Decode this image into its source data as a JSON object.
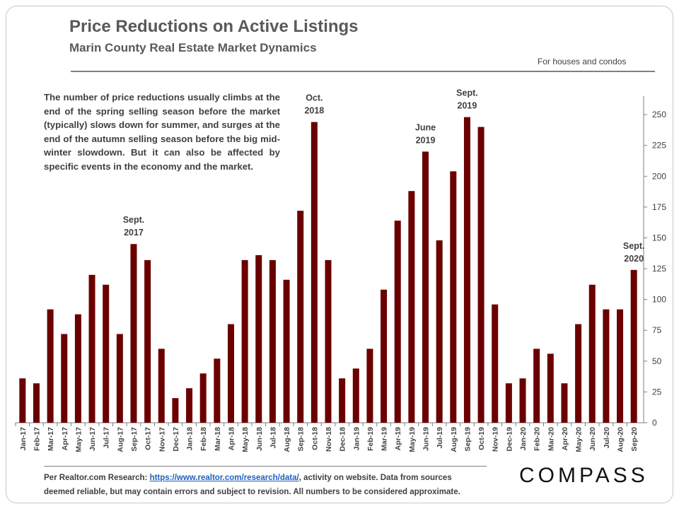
{
  "header": {
    "title": "Price Reductions on Active Listings",
    "subtitle": "Marin County Real Estate Market Dynamics",
    "note": "For houses and condos"
  },
  "description": "The number of price reductions usually climbs at the end of the spring selling season before the market (typically) slows down for summer, and surges at the end of the autumn selling season before the big mid-winter slowdown. But it can also be affected by specific events in the economy and the market.",
  "footer": {
    "prefix": "Per Realtor.com Research: ",
    "link_text": "https://www.realtor.com/research/data/",
    "suffix": ", activity on website. Data from sources",
    "line2": "deemed reliable, but may contain errors and subject to revision. All numbers to be considered approximate."
  },
  "brand": {
    "logo": "COMPASS"
  },
  "colors": {
    "bar": "#6b0000",
    "axis": "#7f7f7f",
    "text": "#404040"
  },
  "chart_data": {
    "type": "bar",
    "title": "Price Reductions on Active Listings",
    "xlabel": "",
    "ylabel": "",
    "ylim": [
      0,
      265
    ],
    "yticks": [
      0,
      25,
      50,
      75,
      100,
      125,
      150,
      175,
      200,
      225,
      250
    ],
    "y_axis_side": "right",
    "categories": [
      "Jan-17",
      "Feb-17",
      "Mar-17",
      "Apr-17",
      "May-17",
      "Jun-17",
      "Jul-17",
      "Aug-17",
      "Sep-17",
      "Oct-17",
      "Nov-17",
      "Dec-17",
      "Jan-18",
      "Feb-18",
      "Mar-18",
      "Apr-18",
      "May-18",
      "Jun-18",
      "Jul-18",
      "Aug-18",
      "Sep-18",
      "Oct-18",
      "Nov-18",
      "Dec-18",
      "Jan-19",
      "Feb-19",
      "Mar-19",
      "Apr-19",
      "May-19",
      "Jun-19",
      "Jul-19",
      "Aug-19",
      "Sep-19",
      "Oct-19",
      "Nov-19",
      "Dec-19",
      "Jan-20",
      "Feb-20",
      "Mar-20",
      "Apr-20",
      "May-20",
      "Jun-20",
      "Jul-20",
      "Aug-20",
      "Sep-20"
    ],
    "values": [
      36,
      32,
      92,
      72,
      88,
      120,
      112,
      72,
      145,
      132,
      60,
      20,
      28,
      40,
      52,
      80,
      132,
      136,
      132,
      116,
      172,
      244,
      132,
      36,
      44,
      60,
      108,
      164,
      188,
      220,
      148,
      204,
      248,
      240,
      96,
      32,
      36,
      60,
      56,
      32,
      80,
      112,
      92,
      92,
      124
    ],
    "annotations": [
      {
        "category": "Sep-17",
        "lines": [
          "Sept.",
          "2017"
        ]
      },
      {
        "category": "Oct-18",
        "lines": [
          "Oct.",
          "2018"
        ]
      },
      {
        "category": "Jun-19",
        "lines": [
          "June",
          "2019"
        ]
      },
      {
        "category": "Sep-19",
        "lines": [
          "Sept.",
          "2019"
        ]
      },
      {
        "category": "Sep-20",
        "lines": [
          "Sept.",
          "2020"
        ]
      }
    ]
  }
}
